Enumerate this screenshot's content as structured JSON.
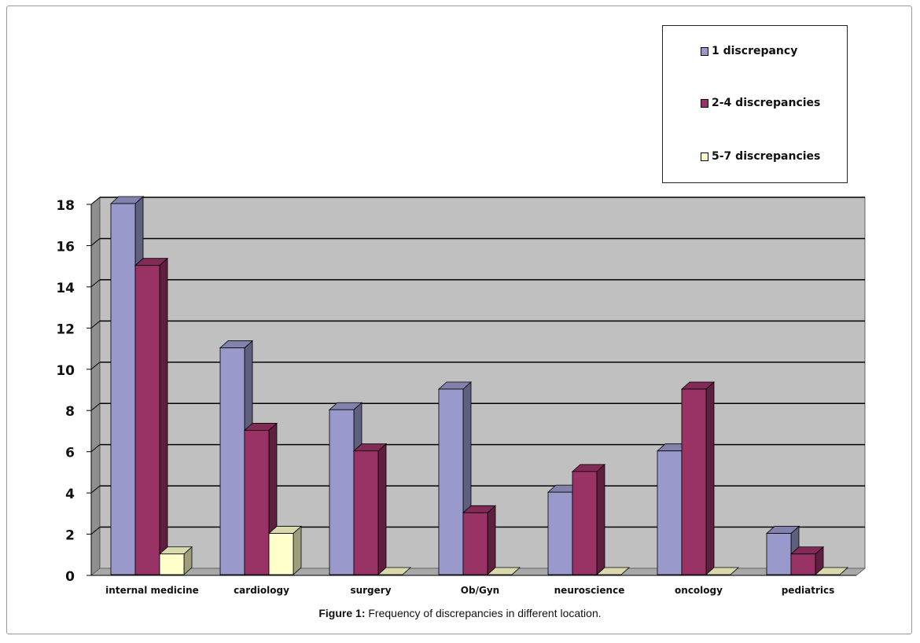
{
  "caption": {
    "label": "Figure 1:",
    "text": "Frequency of discrepancies in different location."
  },
  "chart_data": {
    "type": "bar",
    "categories": [
      "internal medicine",
      "cardiology",
      "surgery",
      "Ob/Gyn",
      "neuroscience",
      "oncology",
      "pediatrics"
    ],
    "series": [
      {
        "name": "1 discrepancy",
        "values": [
          18,
          11,
          8,
          9,
          4,
          6,
          2
        ],
        "color": "#9999CC"
      },
      {
        "name": "2-4 discrepancies",
        "values": [
          15,
          7,
          6,
          3,
          5,
          9,
          1
        ],
        "color": "#993366"
      },
      {
        "name": "5-7 discrepancies",
        "values": [
          1,
          2,
          0,
          0,
          0,
          0,
          0
        ],
        "color": "#FFFFCC"
      }
    ],
    "title": "",
    "xlabel": "",
    "ylabel": "",
    "ylim": [
      0,
      18
    ],
    "yticks": [
      0,
      2,
      4,
      6,
      8,
      10,
      12,
      14,
      16,
      18
    ],
    "grid": true,
    "legend_position": "top-right",
    "plot_background": "#C0C0C0"
  }
}
